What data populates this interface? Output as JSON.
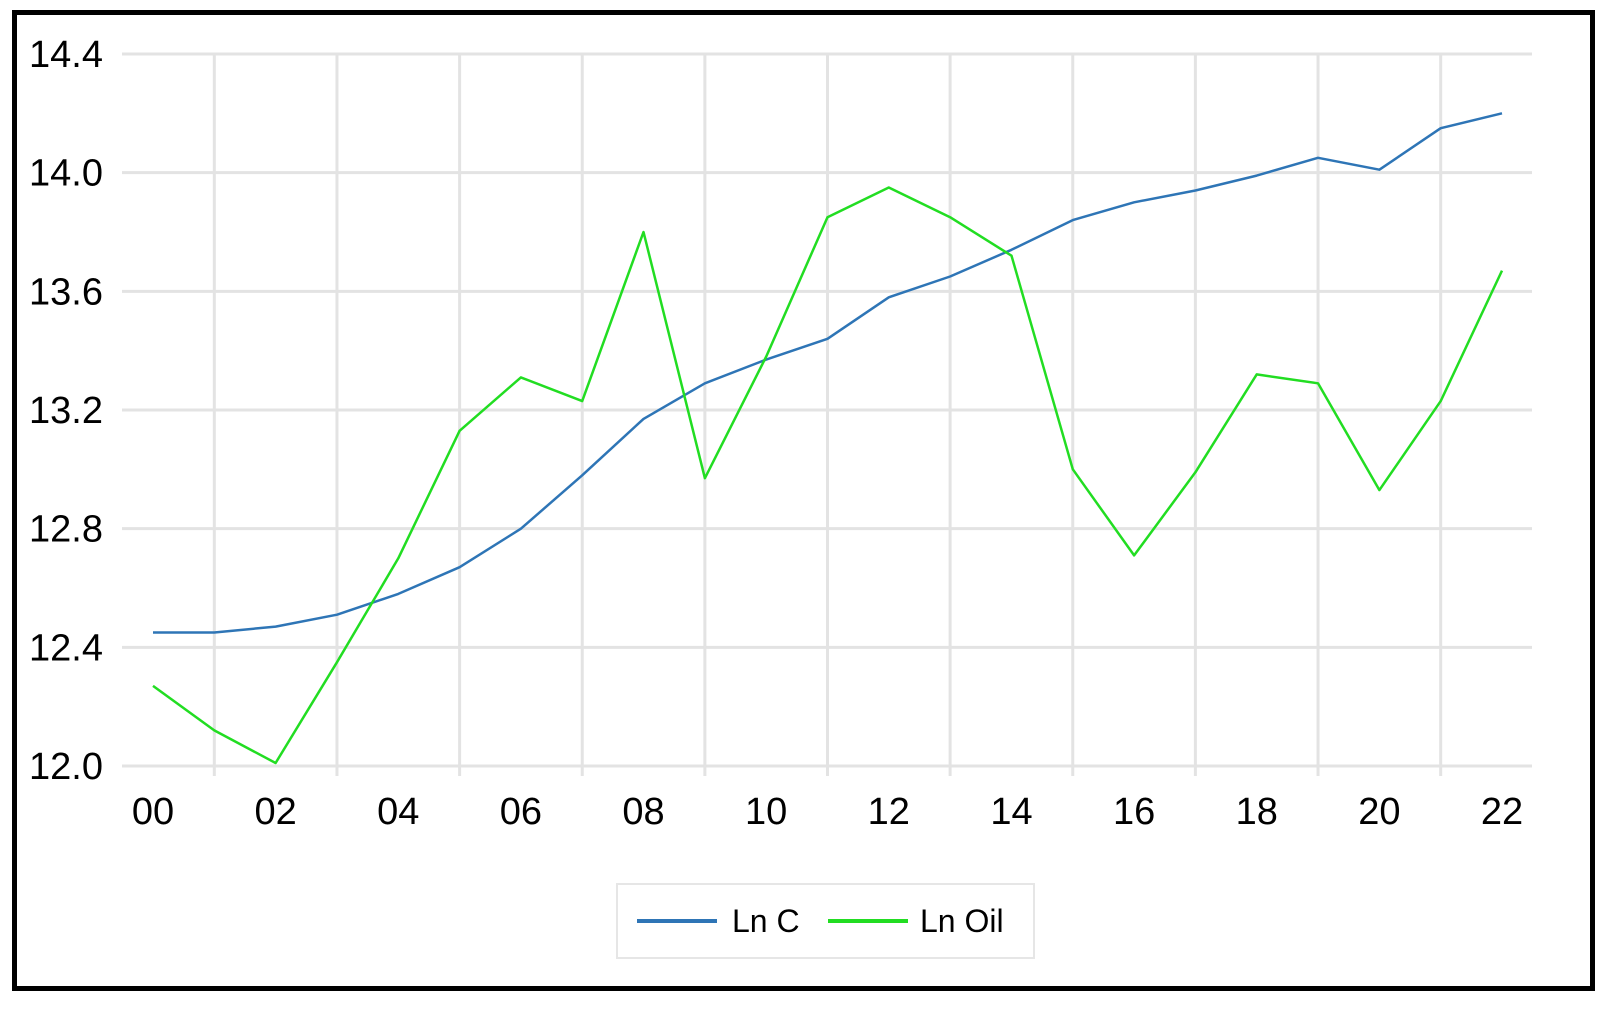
{
  "chart_data": {
    "type": "line",
    "title": "",
    "xlabel": "",
    "ylabel": "",
    "x": [
      "00",
      "01",
      "02",
      "03",
      "04",
      "05",
      "06",
      "07",
      "08",
      "09",
      "10",
      "11",
      "12",
      "13",
      "14",
      "15",
      "16",
      "17",
      "18",
      "19",
      "20",
      "21",
      "22"
    ],
    "x_tick_labels": [
      "00",
      "02",
      "04",
      "06",
      "08",
      "10",
      "12",
      "14",
      "16",
      "18",
      "20",
      "22"
    ],
    "y_tick_labels": [
      "12.0",
      "12.4",
      "12.8",
      "13.2",
      "13.6",
      "14.0",
      "14.4"
    ],
    "ylim": [
      12.0,
      14.4
    ],
    "grid": true,
    "legend_position": "bottom",
    "series": [
      {
        "name": "Ln C",
        "color": "#2E75B6",
        "values": [
          12.45,
          12.45,
          12.47,
          12.51,
          12.58,
          12.67,
          12.8,
          12.98,
          13.17,
          13.29,
          13.37,
          13.44,
          13.58,
          13.65,
          13.74,
          13.84,
          13.9,
          13.94,
          13.99,
          14.05,
          14.01,
          14.15,
          14.2
        ]
      },
      {
        "name": "Ln Oil",
        "color": "#22DD22",
        "values": [
          12.27,
          12.12,
          12.01,
          12.35,
          12.7,
          13.13,
          13.31,
          13.23,
          13.8,
          12.97,
          13.38,
          13.85,
          13.95,
          13.85,
          13.72,
          13.0,
          12.71,
          12.99,
          13.32,
          13.29,
          12.93,
          13.23,
          13.67
        ]
      }
    ]
  }
}
